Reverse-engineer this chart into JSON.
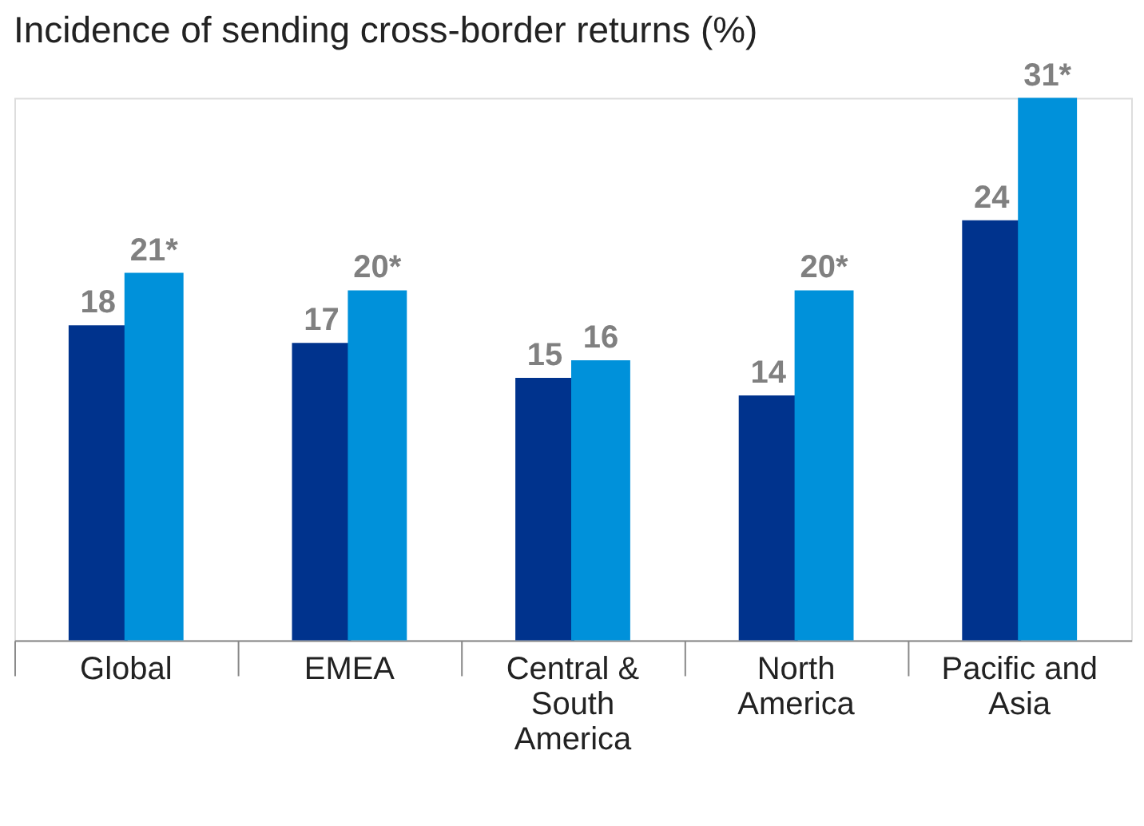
{
  "chart_data": {
    "type": "bar",
    "title": "Incidence of sending cross-border returns (%)",
    "categories": [
      "Global",
      "EMEA",
      "Central & South America",
      "North America",
      "Pacific and Asia"
    ],
    "series": [
      {
        "color": "#00338d",
        "values": [
          18,
          17,
          15,
          14,
          24
        ],
        "value_labels": [
          "18",
          "17",
          "15",
          "14",
          "24"
        ]
      },
      {
        "color": "#0091da",
        "values": [
          21,
          20,
          16,
          20,
          31
        ],
        "value_labels": [
          "21*",
          "20*",
          "16",
          "20*",
          "31*"
        ]
      }
    ],
    "ylim": [
      0,
      31
    ],
    "tick_labels": "x",
    "grid": false,
    "legend": false
  }
}
